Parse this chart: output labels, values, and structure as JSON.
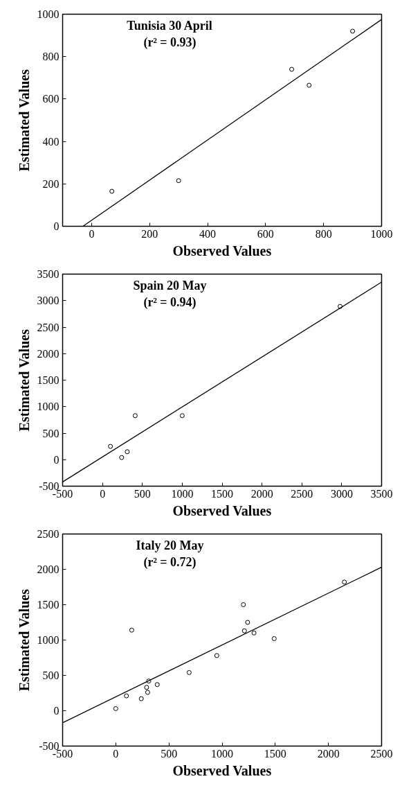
{
  "chart_data": [
    {
      "type": "scatter",
      "xlabel": "Observed Values",
      "ylabel": "Estimated Values",
      "annotations": [
        "Tunisia 30 April",
        "(r² = 0.93)"
      ],
      "xlim": [
        -100,
        1000
      ],
      "ylim": [
        0,
        1000
      ],
      "xticks": [
        0,
        200,
        400,
        600,
        800,
        1000
      ],
      "yticks": [
        0,
        200,
        400,
        600,
        800,
        1000
      ],
      "grid": false,
      "series": [
        {
          "marker": "circle",
          "color": "#000000",
          "x": [
            70,
            300,
            690,
            750,
            900
          ],
          "values": [
            165,
            215,
            740,
            665,
            920
          ]
        },
        {
          "type": "line",
          "color": "#000000",
          "x": [
            -30,
            1000
          ],
          "values": [
            0,
            975
          ]
        }
      ]
    },
    {
      "type": "scatter",
      "xlabel": "Observed Values",
      "ylabel": "Estimated Values",
      "annotations": [
        "Spain 20 May",
        "(r² = 0.94)"
      ],
      "xlim": [
        -500,
        3500
      ],
      "ylim": [
        -500,
        3500
      ],
      "xticks": [
        -500,
        0,
        500,
        1000,
        1500,
        2000,
        2500,
        3000,
        3500
      ],
      "yticks": [
        -500,
        0,
        500,
        1000,
        1500,
        2000,
        2500,
        3000,
        3500
      ],
      "grid": false,
      "series": [
        {
          "marker": "circle",
          "color": "#000000",
          "x": [
            100,
            240,
            310,
            410,
            1000,
            2980
          ],
          "values": [
            250,
            40,
            150,
            830,
            830,
            2890
          ]
        },
        {
          "type": "line",
          "color": "#000000",
          "x": [
            -500,
            3500
          ],
          "values": [
            -420,
            3350
          ]
        }
      ]
    },
    {
      "type": "scatter",
      "xlabel": "Observed Values",
      "ylabel": "Estimated Values",
      "annotations": [
        "Italy 20 May",
        "(r² = 0.72)"
      ],
      "xlim": [
        -500,
        2500
      ],
      "ylim": [
        -500,
        2500
      ],
      "xticks": [
        -500,
        0,
        500,
        1000,
        1500,
        2000,
        2500
      ],
      "yticks": [
        -500,
        0,
        500,
        1000,
        1500,
        2000,
        2500
      ],
      "grid": false,
      "series": [
        {
          "marker": "circle",
          "color": "#000000",
          "x": [
            0,
            100,
            150,
            240,
            290,
            300,
            310,
            390,
            690,
            950,
            1200,
            1210,
            1240,
            1300,
            1490,
            2150
          ],
          "values": [
            30,
            210,
            1140,
            170,
            330,
            260,
            420,
            370,
            540,
            780,
            1500,
            1130,
            1250,
            1100,
            1020,
            1820
          ]
        },
        {
          "type": "line",
          "color": "#000000",
          "x": [
            -500,
            2500
          ],
          "values": [
            -170,
            2030
          ]
        }
      ]
    }
  ]
}
